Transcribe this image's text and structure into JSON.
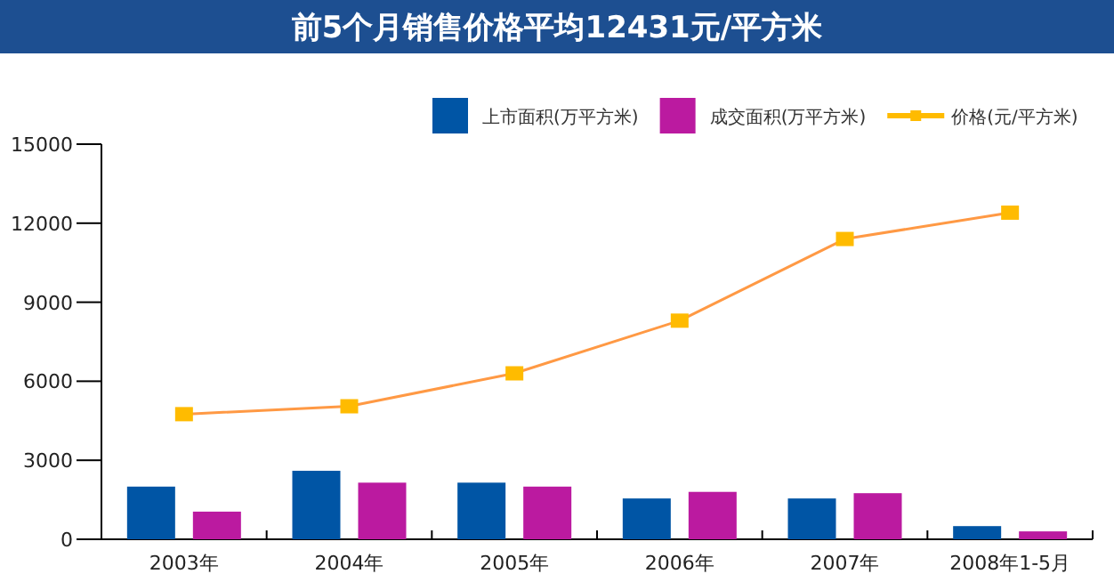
{
  "chart_data": {
    "type": "bar",
    "title": "前5个月销售价格平均12431元/平方米",
    "categories": [
      "2003年",
      "2004年",
      "2005年",
      "2006年",
      "2007年",
      "2008年1-5月"
    ],
    "series": [
      {
        "name": "上市面积(万平方米)",
        "color": "#0055a5",
        "values": [
          2000,
          2600,
          2150,
          1550,
          1550,
          500
        ]
      },
      {
        "name": "成交面积(万平方米)",
        "color": "#bb1aa0",
        "values": [
          1050,
          2150,
          2000,
          1800,
          1750,
          300
        ]
      },
      {
        "name": "价格(元/平方米)",
        "type": "line",
        "color": "#ff9944",
        "values": [
          4750,
          5050,
          6300,
          8300,
          11400,
          12400
        ]
      }
    ],
    "ylim": [
      0,
      15000
    ],
    "yticks": [
      0,
      3000,
      6000,
      9000,
      12000,
      15000
    ],
    "legend": "top right",
    "marker": "square"
  }
}
